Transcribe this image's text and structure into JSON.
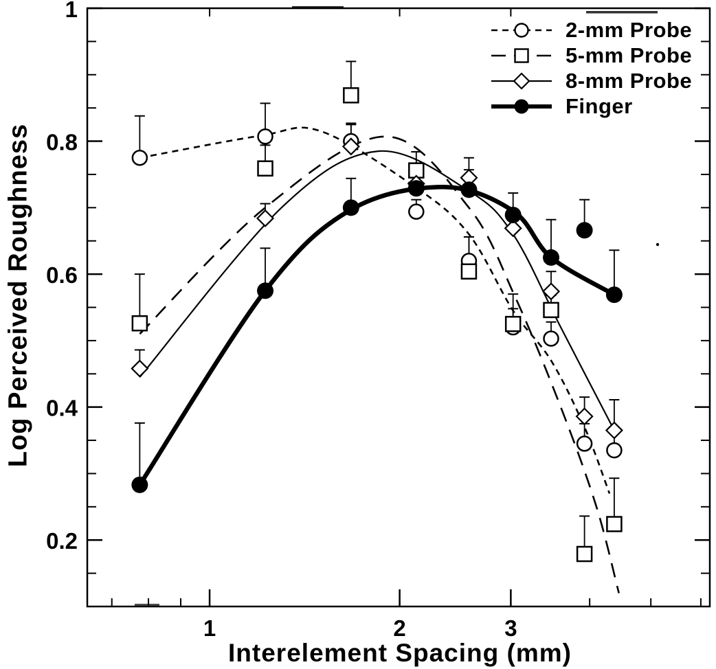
{
  "figure": {
    "background": "#ffffff",
    "ink_color": "#000000",
    "style": "scanned black-and-white journal figure"
  },
  "chart_data": {
    "type": "line",
    "title": "",
    "x_axis": {
      "label": "Interelement Spacing (mm)",
      "scale": "log",
      "ticks": [
        1,
        2,
        3
      ],
      "tick_labels": [
        "1",
        "2",
        "3"
      ],
      "minor_ticks": [
        0.7,
        0.8,
        0.9,
        4,
        5,
        6
      ],
      "range": [
        0.64,
        6.2
      ]
    },
    "y_axis": {
      "label": "Log Perceived Roughness",
      "scale": "linear",
      "ticks": [
        1.0,
        0.8,
        0.6,
        0.4,
        0.2
      ],
      "tick_labels": [
        "1",
        "0.8",
        "0.6",
        "0.4",
        "0.2"
      ],
      "minor_tick_step": 0.05,
      "range": [
        0.1,
        1.0
      ]
    },
    "legend": {
      "position": "top-right-inside"
    },
    "x": [
      0.775,
      1.225,
      1.675,
      2.125,
      2.575,
      3.025,
      3.475,
      3.925,
      4.375
    ],
    "series": [
      {
        "name": "2-mm Probe",
        "marker": "open-circle",
        "line": "short-dash",
        "color": "#000000",
        "values": [
          0.775,
          0.807,
          0.8,
          0.694,
          0.62,
          0.52,
          0.503,
          0.345,
          0.335
        ],
        "err_up": [
          0.063,
          0.05,
          0.025,
          0.018,
          0.036,
          0.028,
          0.025,
          0.03,
          0.028
        ],
        "curve": [
          [
            0.775,
            0.775
          ],
          [
            1.2,
            0.808
          ],
          [
            1.5,
            0.815
          ],
          [
            2.125,
            0.73
          ],
          [
            2.575,
            0.66
          ],
          [
            3.025,
            0.545
          ],
          [
            3.475,
            0.47
          ],
          [
            3.925,
            0.37
          ],
          [
            4.3,
            0.27
          ]
        ]
      },
      {
        "name": "5-mm Probe",
        "marker": "open-square",
        "line": "long-dash",
        "color": "#000000",
        "values": [
          0.526,
          0.759,
          0.869,
          0.756,
          0.604,
          0.525,
          0.546,
          0.179,
          0.224
        ],
        "err_up": [
          0.074,
          0.035,
          0.051,
          0.028,
          0.052,
          0.045,
          0.022,
          0.057,
          0.069
        ],
        "curve": [
          [
            0.775,
            0.51
          ],
          [
            1.225,
            0.7
          ],
          [
            1.9,
            0.807
          ],
          [
            2.575,
            0.7
          ],
          [
            3.05,
            0.565
          ],
          [
            3.6,
            0.4
          ],
          [
            4.1,
            0.25
          ],
          [
            4.45,
            0.12
          ]
        ]
      },
      {
        "name": "8-mm Probe",
        "marker": "open-diamond",
        "line": "thin-solid",
        "color": "#000000",
        "values": [
          0.458,
          0.684,
          0.792,
          0.736,
          0.745,
          0.669,
          0.574,
          0.386,
          0.365
        ],
        "err_up": [
          0.028,
          0.022,
          0.035,
          0.022,
          0.03,
          0.02,
          0.03,
          0.029,
          0.046
        ],
        "curve": [
          [
            0.775,
            0.445
          ],
          [
            1.3,
            0.7
          ],
          [
            1.85,
            0.785
          ],
          [
            2.575,
            0.725
          ],
          [
            3.025,
            0.66
          ],
          [
            3.6,
            0.52
          ],
          [
            4.375,
            0.365
          ]
        ]
      },
      {
        "name": "Finger",
        "marker": "filled-circle",
        "line": "thick-solid",
        "color": "#000000",
        "values": [
          0.283,
          0.575,
          0.7,
          0.729,
          0.727,
          0.689,
          0.625,
          0.666,
          0.569
        ],
        "err_up": [
          0.093,
          0.064,
          0.044,
          0.025,
          0.03,
          0.033,
          0.057,
          0.046,
          0.067
        ],
        "curve": [
          [
            0.775,
            0.283
          ],
          [
            1.225,
            0.575
          ],
          [
            1.675,
            0.697
          ],
          [
            2.35,
            0.731
          ],
          [
            3.025,
            0.695
          ],
          [
            3.475,
            0.625
          ],
          [
            4.375,
            0.569
          ]
        ]
      }
    ]
  }
}
